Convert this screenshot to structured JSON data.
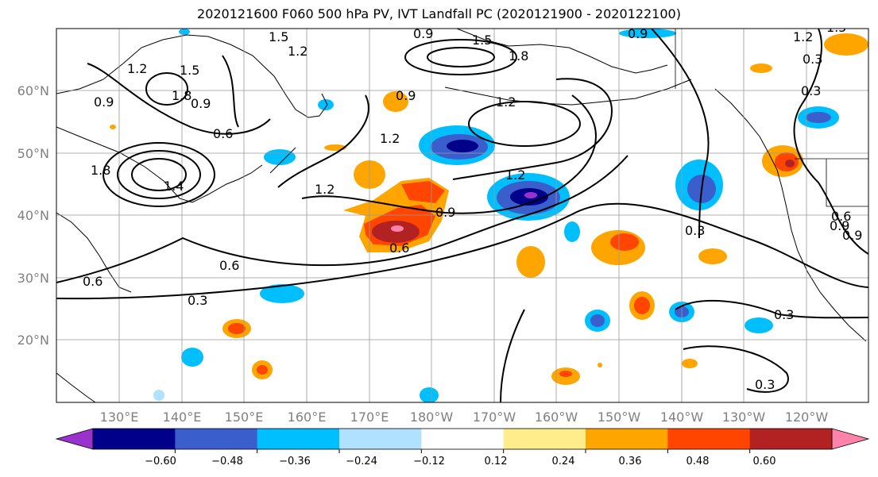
{
  "title": "2020121600 F060 500 hPa PV, IVT Landfall PC (2020121900 - 2020122100)",
  "map": {
    "lon_labels": [
      "130°E",
      "140°E",
      "150°E",
      "160°E",
      "170°E",
      "180°W",
      "170°W",
      "160°W",
      "150°W",
      "140°W",
      "130°W",
      "120°W"
    ],
    "lat_labels": [
      "60°N",
      "50°N",
      "40°N",
      "30°N",
      "20°N"
    ],
    "contour_labels": [
      "1.5",
      "1.5",
      "1.2",
      "0.9",
      "0.9",
      "1.2",
      "1.5",
      "1.8",
      "1.2",
      "0.9",
      "1.8",
      "1.5",
      "1.2",
      "0.9",
      "0.6",
      "0.9",
      "1.2",
      "1.2",
      "0.9",
      "1.8",
      "1.4",
      "0.6",
      "0.6",
      "0.9",
      "0.6",
      "1.2",
      "0.3",
      "0.3",
      "0.3",
      "0.3",
      "0.6",
      "0.9",
      "0.3",
      "0.3"
    ]
  },
  "colorbar": {
    "colors": [
      "#9a32cd",
      "#00008b",
      "#3a5fcd",
      "#00bfff",
      "#b0e2ff",
      "#ffffff",
      "#ffec8b",
      "#ffa500",
      "#ff4500",
      "#b22222",
      "#ff82ab"
    ],
    "tick_labels": [
      "−0.60",
      "−0.48",
      "−0.36",
      "−0.24",
      "−0.12",
      "0.12",
      "0.24",
      "0.36",
      "0.48",
      "0.60"
    ]
  }
}
